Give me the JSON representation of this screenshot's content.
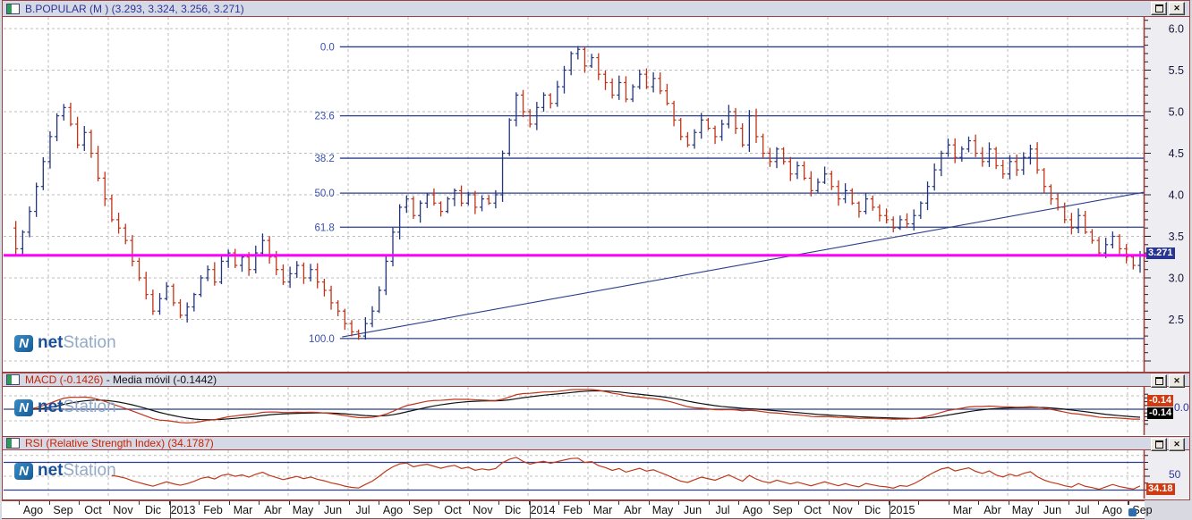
{
  "window": {
    "close_glyph": "✕"
  },
  "logo": {
    "n": "N",
    "part1": "net",
    "part2": "Station"
  },
  "panels": {
    "main": {
      "title": "B.POPULAR (M ) (3.293, 3.324, 3.256, 3.271)",
      "price_label": "3.271",
      "axis_labels": [
        "6.0",
        "5.5",
        "5.0",
        "4.5",
        "4.0",
        "3.5",
        "3.0",
        "2.5"
      ]
    },
    "macd": {
      "title": "MACD (-0.1426)",
      "sep": " - ",
      "title2": "Media móvil (-0.1442)",
      "labels": {
        "macd": "-0.14",
        "zero": "0.0",
        "signal": "-0.14"
      }
    },
    "rsi": {
      "title": "RSI (Relative Strength Index) (34.1787)",
      "labels": {
        "level50": "50",
        "current": "34.18"
      }
    }
  },
  "date_axis": {
    "labels": [
      "Ago",
      "Sep",
      "Oct",
      "Nov",
      "Dic",
      "2013",
      "Feb",
      "Mar",
      "Abr",
      "May",
      "Jun",
      "Jul",
      "Ago",
      "Sep",
      "Oct",
      "Nov",
      "Dic",
      "2014",
      "Feb",
      "Mar",
      "Abr",
      "May",
      "Jun",
      "Jul",
      "Ago",
      "Sep",
      "Oct",
      "Nov",
      "Dic",
      "2015",
      "",
      "Mar",
      "Abr",
      "May",
      "Jun",
      "Jul",
      "Ago",
      "Sep"
    ],
    "year_indices": [
      5,
      17,
      29
    ]
  },
  "chart_data": [
    {
      "type": "ohlc-bar",
      "symbol": "B.POPULAR",
      "period": "M",
      "current_bar": {
        "open": 3.293,
        "high": 3.324,
        "low": 3.256,
        "close": 3.271
      },
      "ylim": [
        1.9,
        6.13
      ],
      "yticks": [
        6.0,
        5.5,
        5.0,
        4.5,
        4.0,
        3.5,
        3.0,
        2.5
      ],
      "grid": true,
      "colors": {
        "up": "#23357d",
        "down": "#c23317",
        "current_line": "#ff00ff",
        "fib": "#2c3e8c"
      },
      "closes": [
        3.6,
        3.35,
        3.55,
        3.8,
        4.1,
        4.4,
        4.7,
        4.95,
        5.05,
        4.85,
        4.6,
        4.75,
        4.5,
        4.2,
        3.95,
        3.7,
        3.6,
        3.45,
        3.2,
        3.0,
        2.8,
        2.6,
        2.75,
        2.9,
        2.7,
        2.55,
        2.65,
        2.8,
        3.0,
        3.1,
        2.95,
        3.2,
        3.3,
        3.15,
        3.25,
        3.1,
        3.3,
        3.45,
        3.25,
        3.1,
        2.95,
        3.05,
        3.15,
        3.0,
        3.1,
        2.95,
        2.85,
        2.7,
        2.6,
        2.45,
        2.35,
        2.3,
        2.45,
        2.6,
        2.85,
        3.2,
        3.55,
        3.85,
        3.95,
        3.75,
        3.9,
        4.0,
        3.9,
        3.8,
        3.95,
        4.05,
        3.9,
        4.0,
        3.85,
        3.95,
        3.9,
        4.0,
        4.5,
        4.9,
        5.2,
        5.0,
        4.85,
        5.05,
        5.2,
        5.1,
        5.3,
        5.5,
        5.7,
        5.75,
        5.55,
        5.65,
        5.45,
        5.35,
        5.2,
        5.35,
        5.15,
        5.3,
        5.45,
        5.3,
        5.4,
        5.25,
        5.1,
        4.9,
        4.7,
        4.6,
        4.75,
        4.9,
        4.8,
        4.7,
        4.85,
        5.0,
        4.8,
        4.6,
        4.95,
        4.7,
        4.5,
        4.4,
        4.55,
        4.4,
        4.25,
        4.35,
        4.2,
        4.05,
        4.15,
        4.25,
        4.1,
        3.95,
        4.05,
        3.9,
        3.8,
        3.95,
        3.85,
        3.75,
        3.7,
        3.6,
        3.7,
        3.65,
        3.75,
        3.9,
        4.1,
        4.3,
        4.5,
        4.6,
        4.45,
        4.55,
        4.65,
        4.5,
        4.4,
        4.55,
        4.35,
        4.25,
        4.4,
        4.3,
        4.45,
        4.55,
        4.3,
        4.1,
        3.95,
        3.85,
        3.7,
        3.6,
        3.75,
        3.55,
        3.45,
        3.3,
        3.4,
        3.5,
        3.35,
        3.25,
        3.15,
        3.271
      ],
      "annotations": {
        "fibonacci": {
          "x_start_frac": 0.295,
          "levels": [
            {
              "label": "0.0",
              "price": 5.78
            },
            {
              "label": "23.6",
              "price": 4.95
            },
            {
              "label": "38.2",
              "price": 4.44
            },
            {
              "label": "50.0",
              "price": 4.02
            },
            {
              "label": "61.8",
              "price": 3.61
            },
            {
              "label": "100.0",
              "price": 2.27
            }
          ]
        },
        "trendline": {
          "x1_frac": 0.297,
          "price1": 2.29,
          "x2_frac": 1.0,
          "price2": 4.03
        },
        "hline_current": {
          "price": 3.271
        }
      }
    },
    {
      "type": "line",
      "name": "MACD",
      "value": -0.1426,
      "signal_name": "Media móvil",
      "signal_value": -0.1442,
      "zero_line": 0.0,
      "computed_from": "closes (EMA12 - EMA26, signal EMA9)",
      "colors": {
        "macd": "#c23317",
        "signal": "#111111"
      }
    },
    {
      "type": "line",
      "name": "RSI",
      "value": 34.1787,
      "levels": [
        70,
        50,
        30
      ],
      "computed_from": "closes (Wilder 14)",
      "colors": {
        "rsi": "#c0391b"
      }
    }
  ]
}
